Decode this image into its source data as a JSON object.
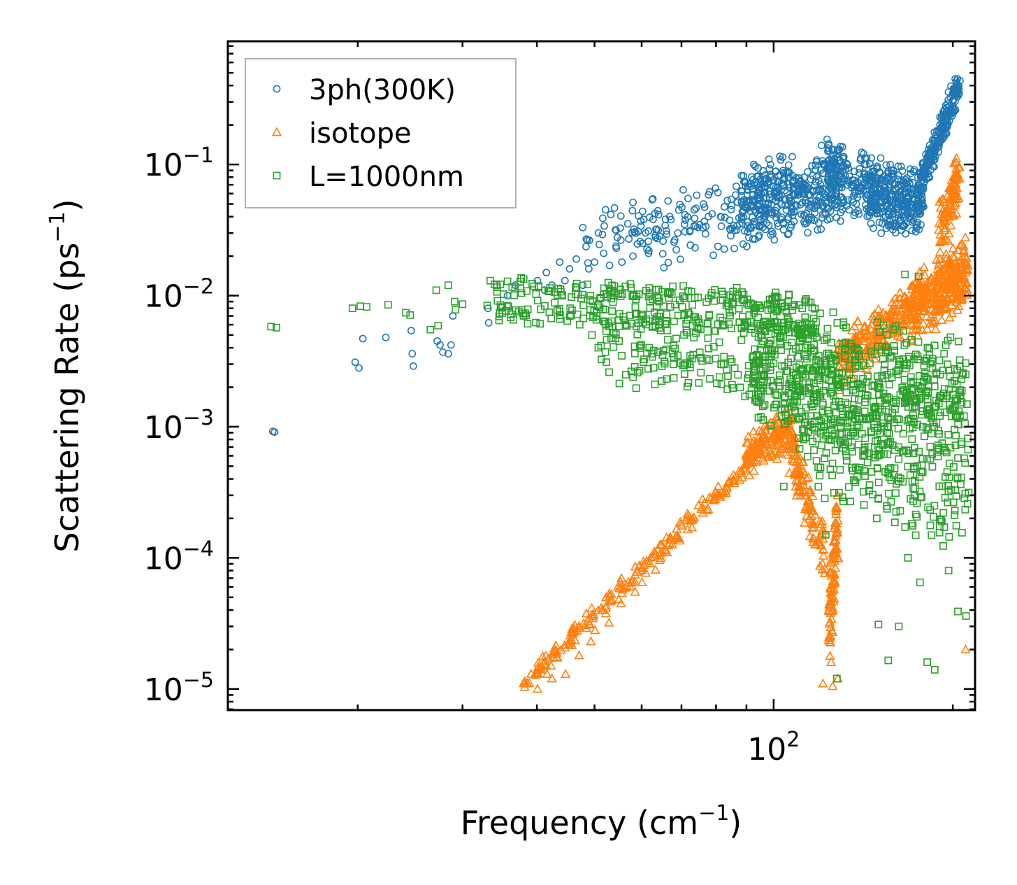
{
  "chart_data": {
    "type": "scatter",
    "scale": {
      "x": "log",
      "y": "log"
    },
    "xlabel": "Frequency (cm$^{-1}$)",
    "ylabel": "Scattering Rate (ps$^{-1}$)",
    "xlim": [
      12.1,
      218
    ],
    "ylim": [
      6.9e-06,
      0.87
    ],
    "xticks": [
      {
        "value": 100,
        "base": "10",
        "exp": "2"
      }
    ],
    "yticks": [
      {
        "value": 0.1,
        "base": "10",
        "exp": "−1"
      },
      {
        "value": 0.01,
        "base": "10",
        "exp": "−2"
      },
      {
        "value": 0.001,
        "base": "10",
        "exp": "−3"
      },
      {
        "value": 0.0001,
        "base": "10",
        "exp": "−4"
      },
      {
        "value": 1e-05,
        "base": "10",
        "exp": "−5"
      }
    ],
    "legend": {
      "position": "top-left"
    },
    "series": [
      {
        "name": "3ph(300K)",
        "marker": "circle",
        "color": "#1f77b4",
        "points": [
          [
            14.4,
            0.00092
          ],
          [
            14.5,
            0.00091
          ],
          [
            19.8,
            0.0031
          ],
          [
            20.1,
            0.0028
          ],
          [
            20.4,
            0.0047
          ],
          [
            22.3,
            0.0048
          ],
          [
            24.6,
            0.0054
          ],
          [
            24.8,
            0.0029
          ],
          [
            24.7,
            0.0036
          ],
          [
            27.2,
            0.0045
          ],
          [
            27.8,
            0.0037
          ],
          [
            27.5,
            0.0042
          ],
          [
            28.4,
            0.0036
          ],
          [
            28.7,
            0.0042
          ],
          [
            28.9,
            0.007
          ],
          [
            33.1,
            0.008
          ],
          [
            33.2,
            0.0062
          ],
          [
            35.7,
            0.01
          ],
          [
            36.8,
            0.012
          ],
          [
            40.1,
            0.013
          ],
          [
            41.2,
            0.011
          ],
          [
            41.5,
            0.015
          ],
          [
            42.4,
            0.012
          ],
          [
            43.7,
            0.018
          ],
          [
            44.6,
            0.013
          ],
          [
            45.4,
            0.016
          ],
          [
            46.6,
            0.019
          ],
          [
            47.8,
            0.012
          ],
          [
            48.9,
            0.016
          ],
          [
            50.0,
            0.018
          ],
          [
            51.8,
            0.021
          ],
          [
            53.0,
            0.017
          ],
          [
            54.4,
            0.023
          ],
          [
            55.6,
            0.018
          ],
          [
            57.1,
            0.027
          ],
          [
            58.0,
            0.02
          ],
          [
            60.2,
            0.025
          ],
          [
            61.7,
            0.022
          ],
          [
            63.4,
            0.032
          ],
          [
            65.2,
            0.026
          ],
          [
            67.2,
            0.038
          ],
          [
            69.0,
            0.03
          ],
          [
            71.8,
            0.055
          ],
          [
            73.5,
            0.034
          ],
          [
            76.2,
            0.05
          ],
          [
            78.8,
            0.042
          ],
          [
            80.6,
            0.061
          ],
          [
            83.6,
            0.053
          ],
          [
            86.8,
            0.034
          ],
          [
            89.5,
            0.074
          ],
          [
            92.1,
            0.065
          ],
          [
            94.3,
            0.028
          ],
          [
            96.7,
            0.068
          ],
          [
            98.9,
            0.029
          ],
          [
            101.2,
            0.057
          ],
          [
            104.1,
            0.069
          ]
        ],
        "bands": [
          {
            "from": [
              48,
              0.025
            ],
            "to": [
              95,
              0.045
            ],
            "spread": 0.35,
            "count": 140
          },
          {
            "from": [
              88,
              0.05
            ],
            "to": [
              130,
              0.07
            ],
            "spread": 0.35,
            "count": 380
          },
          {
            "from": [
              123,
              0.09
            ],
            "to": [
              146,
              0.07
            ],
            "spread": 0.28,
            "count": 160
          },
          {
            "from": [
              144,
              0.06
            ],
            "to": [
              178,
              0.05
            ],
            "spread": 0.3,
            "count": 320
          },
          {
            "from": [
              176,
              0.07
            ],
            "to": [
              205,
              0.4
            ],
            "spread": 0.15,
            "count": 220
          }
        ]
      },
      {
        "name": "isotope",
        "marker": "triangle",
        "color": "#ff7f0e",
        "points": [
          [
            38.2,
            1.1e-05
          ],
          [
            40.1,
            1e-05
          ],
          [
            41.6,
            1.3e-05
          ],
          [
            42.4,
            1.2e-05
          ],
          [
            44.7,
            1.3e-05
          ],
          [
            47.1,
            1.8e-05
          ],
          [
            49.3,
            2.3e-05
          ],
          [
            50.1,
            2.8e-05
          ],
          [
            52.9,
            3.2e-05
          ],
          [
            55.4,
            4.5e-05
          ],
          [
            58.5,
            5.5e-05
          ],
          [
            60.1,
            6.5e-05
          ],
          [
            63.3,
            8.1e-05
          ],
          [
            66.2,
            0.00011
          ],
          [
            69.4,
            0.00014
          ],
          [
            72.9,
            0.00017
          ],
          [
            76.1,
            0.00022
          ],
          [
            79.8,
            0.00028
          ],
          [
            83.7,
            0.00037
          ],
          [
            87.5,
            0.00046
          ],
          [
            121.0,
            1.1e-05
          ],
          [
            125.7,
            1.05e-05
          ],
          [
            128.2,
            1.2e-05
          ],
          [
            124.9,
            1.6e-05
          ],
          [
            190.0,
            0.052
          ],
          [
            210.2,
            2e-05
          ],
          [
            160.0,
            0.0095
          ],
          [
            176.0,
            0.012
          ]
        ],
        "bands": [
          {
            "from": [
              38,
              1.1e-05
            ],
            "to": [
              90,
              0.0005
            ],
            "spread": 0.08,
            "count": 200
          },
          {
            "from": [
              90,
              0.0006
            ],
            "to": [
              108,
              0.001
            ],
            "spread": 0.18,
            "count": 160
          },
          {
            "from": [
              106,
              0.0008
            ],
            "to": [
              122,
              0.0001
            ],
            "spread": 0.25,
            "count": 120
          },
          {
            "from": [
              124,
              3e-05
            ],
            "to": [
              128,
              0.0002
            ],
            "spread": 0.35,
            "count": 90
          },
          {
            "from": [
              128,
              0.003
            ],
            "to": [
              170,
              0.008
            ],
            "spread": 0.22,
            "count": 220
          },
          {
            "from": [
              170,
              0.008
            ],
            "to": [
              212,
              0.015
            ],
            "spread": 0.28,
            "count": 320
          },
          {
            "from": [
              190,
              0.03
            ],
            "to": [
              205,
              0.08
            ],
            "spread": 0.25,
            "count": 90
          }
        ]
      },
      {
        "name": "L=1000nm",
        "marker": "square",
        "color": "#2ca02c",
        "points": [
          [
            14.3,
            0.0058
          ],
          [
            14.6,
            0.0057
          ],
          [
            19.6,
            0.008
          ],
          [
            20.2,
            0.0083
          ],
          [
            20.7,
            0.0082
          ],
          [
            22.5,
            0.0085
          ],
          [
            24.1,
            0.0074
          ],
          [
            24.5,
            0.0071
          ],
          [
            26.5,
            0.0055
          ],
          [
            27.3,
            0.0059
          ],
          [
            27.1,
            0.011
          ],
          [
            28.4,
            0.012
          ],
          [
            29.2,
            0.0078
          ],
          [
            29.1,
            0.009
          ],
          [
            30.0,
            0.0086
          ],
          [
            33.0,
            0.0084
          ],
          [
            33.4,
            0.013
          ],
          [
            35.0,
            0.0082
          ],
          [
            36.2,
            0.0072
          ],
          [
            38.0,
            0.007
          ],
          [
            40.5,
            0.0061
          ],
          [
            42.3,
            0.0067
          ],
          [
            45.0,
            0.0064
          ],
          [
            47.2,
            0.006
          ],
          [
            49.5,
            0.005
          ],
          [
            52.4,
            0.0046
          ],
          [
            55.0,
            0.0045
          ],
          [
            58.4,
            0.0041
          ],
          [
            61.8,
            0.004
          ],
          [
            65.3,
            0.0038
          ],
          [
            69.0,
            0.0035
          ],
          [
            72.9,
            0.0033
          ],
          [
            77.2,
            0.0033
          ],
          [
            81.6,
            0.003
          ],
          [
            86.0,
            0.0028
          ],
          [
            90.8,
            0.0025
          ],
          [
            95.3,
            0.0023
          ],
          [
            104.0,
            0.00035
          ],
          [
            122.3,
            0.00015
          ],
          [
            127.7,
            1.2e-05
          ],
          [
            150.0,
            3.1e-05
          ],
          [
            155.8,
            1.65e-05
          ],
          [
            162.3,
            3e-05
          ],
          [
            168.2,
            0.0001
          ],
          [
            176.2,
            6.5e-05
          ],
          [
            181.2,
            1.6e-05
          ],
          [
            186.5,
            1.4e-05
          ],
          [
            196.8,
            8e-05
          ],
          [
            204.0,
            3.9e-05
          ],
          [
            210.5,
            3.6e-05
          ],
          [
            175.1,
            0.014
          ],
          [
            166.2,
            0.0145
          ],
          [
            112.3,
            0.0008
          ],
          [
            118.0,
            0.00055
          ]
        ],
        "bands": [
          {
            "from": [
              34,
              0.0115
            ],
            "to": [
              118,
              0.0085
            ],
            "spread": 0.1,
            "count": 180
          },
          {
            "from": [
              34,
              0.0078
            ],
            "to": [
              118,
              0.0055
            ],
            "spread": 0.1,
            "count": 180
          },
          {
            "from": [
              50,
              0.0045
            ],
            "to": [
              95,
              0.0025
            ],
            "spread": 0.3,
            "count": 120
          },
          {
            "from": [
              92,
              0.003
            ],
            "to": [
              212,
              0.0015
            ],
            "spread": 0.55,
            "count": 650
          },
          {
            "from": [
              110,
              0.001
            ],
            "to": [
              212,
              0.0003
            ],
            "spread": 0.55,
            "count": 260
          }
        ]
      }
    ]
  }
}
